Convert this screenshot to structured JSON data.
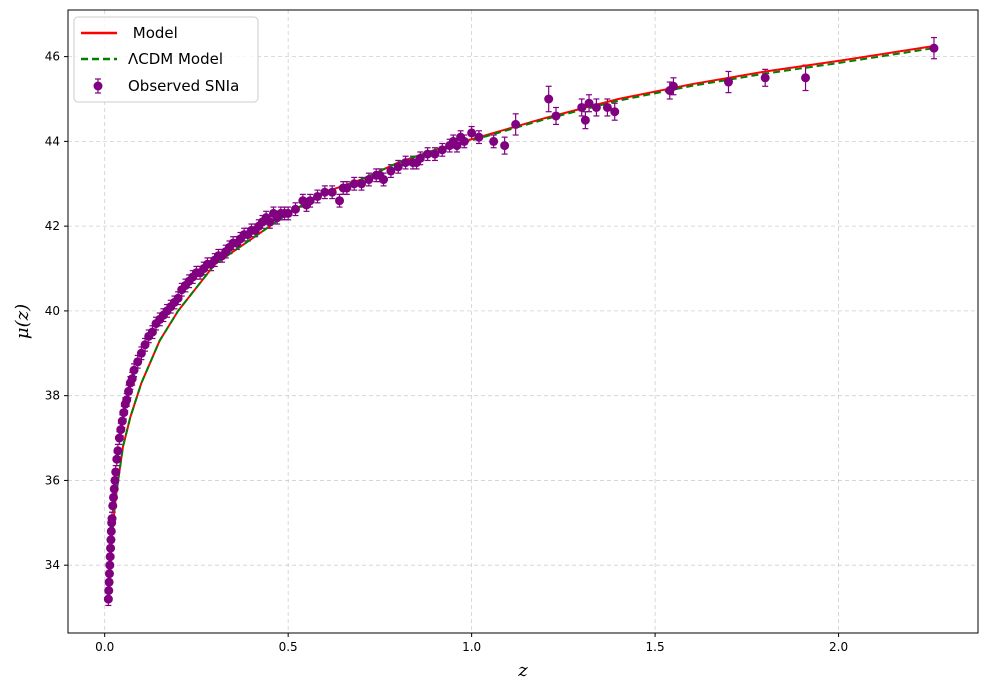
{
  "chart_data": {
    "type": "scatter",
    "title": "",
    "xlabel": "z",
    "ylabel": "μ(z)",
    "xlim": [
      -0.1,
      2.38
    ],
    "ylim": [
      32.4,
      47.1
    ],
    "x_ticks": [
      0.0,
      0.5,
      1.0,
      1.5,
      2.0
    ],
    "x_tick_labels": [
      "0.0",
      "0.5",
      "1.0",
      "1.5",
      "2.0"
    ],
    "y_ticks": [
      34,
      36,
      38,
      40,
      42,
      44,
      46
    ],
    "y_tick_labels": [
      "34",
      "36",
      "38",
      "40",
      "42",
      "44",
      "46"
    ],
    "grid": true,
    "legend_position": "top-left",
    "legend": [
      {
        "label": " Model",
        "style": "solid-line",
        "color": "#ff0000"
      },
      {
        "label": "ΛCDM Model",
        "style": "dashed-line",
        "color": "#008000"
      },
      {
        "label": "Observed SNIa",
        "style": "marker-errorbar",
        "color": "#800080"
      }
    ],
    "series": [
      {
        "name": " Model",
        "kind": "line",
        "color": "#ff0000",
        "x": [
          0.01,
          0.02,
          0.03,
          0.05,
          0.07,
          0.1,
          0.15,
          0.2,
          0.3,
          0.4,
          0.5,
          0.6,
          0.7,
          0.8,
          0.9,
          1.0,
          1.2,
          1.4,
          1.6,
          1.8,
          2.0,
          2.26
        ],
        "y": [
          33.2,
          34.7,
          35.6,
          36.8,
          37.5,
          38.3,
          39.3,
          40.0,
          41.1,
          41.7,
          42.3,
          42.8,
          43.1,
          43.5,
          43.8,
          44.05,
          44.55,
          45.0,
          45.35,
          45.65,
          45.9,
          46.25
        ]
      },
      {
        "name": "ΛCDM Model",
        "kind": "dashed-line",
        "color": "#008000",
        "x": [
          0.01,
          0.02,
          0.03,
          0.05,
          0.07,
          0.1,
          0.15,
          0.2,
          0.3,
          0.4,
          0.5,
          0.6,
          0.7,
          0.8,
          0.9,
          1.0,
          1.2,
          1.4,
          1.6,
          1.8,
          2.0,
          2.26
        ],
        "y": [
          33.2,
          34.7,
          35.6,
          36.8,
          37.5,
          38.3,
          39.3,
          40.0,
          41.1,
          41.7,
          42.3,
          42.8,
          43.1,
          43.5,
          43.8,
          44.02,
          44.52,
          44.96,
          45.31,
          45.6,
          45.85,
          46.2
        ]
      },
      {
        "name": "Observed SNIa",
        "kind": "scatter-errorbar",
        "color": "#800080",
        "x": [
          0.01,
          0.011,
          0.012,
          0.013,
          0.014,
          0.015,
          0.016,
          0.017,
          0.018,
          0.019,
          0.02,
          0.022,
          0.024,
          0.026,
          0.028,
          0.03,
          0.033,
          0.036,
          0.04,
          0.044,
          0.048,
          0.052,
          0.056,
          0.06,
          0.065,
          0.07,
          0.075,
          0.08,
          0.09,
          0.1,
          0.11,
          0.12,
          0.13,
          0.14,
          0.15,
          0.16,
          0.17,
          0.18,
          0.19,
          0.2,
          0.21,
          0.22,
          0.23,
          0.24,
          0.25,
          0.26,
          0.27,
          0.28,
          0.29,
          0.3,
          0.31,
          0.32,
          0.33,
          0.34,
          0.35,
          0.36,
          0.37,
          0.38,
          0.39,
          0.4,
          0.41,
          0.42,
          0.43,
          0.44,
          0.45,
          0.46,
          0.47,
          0.48,
          0.49,
          0.5,
          0.52,
          0.54,
          0.55,
          0.56,
          0.58,
          0.6,
          0.62,
          0.64,
          0.65,
          0.66,
          0.68,
          0.7,
          0.72,
          0.74,
          0.75,
          0.76,
          0.78,
          0.8,
          0.82,
          0.84,
          0.85,
          0.86,
          0.88,
          0.9,
          0.92,
          0.94,
          0.95,
          0.96,
          0.97,
          0.98,
          1.0,
          1.02,
          1.06,
          1.09,
          1.12,
          1.21,
          1.23,
          1.3,
          1.31,
          1.32,
          1.34,
          1.37,
          1.39,
          1.54,
          1.55,
          1.7,
          1.8,
          1.91,
          2.26
        ],
        "y": [
          33.2,
          33.4,
          33.6,
          33.8,
          34.0,
          34.2,
          34.4,
          34.6,
          34.8,
          35.0,
          35.1,
          35.4,
          35.6,
          35.8,
          36.0,
          36.2,
          36.5,
          36.7,
          37.0,
          37.2,
          37.4,
          37.6,
          37.8,
          37.9,
          38.1,
          38.3,
          38.4,
          38.6,
          38.8,
          39.0,
          39.2,
          39.4,
          39.5,
          39.7,
          39.8,
          39.9,
          40.0,
          40.1,
          40.2,
          40.3,
          40.5,
          40.6,
          40.7,
          40.8,
          40.9,
          40.9,
          41.0,
          41.1,
          41.1,
          41.2,
          41.3,
          41.3,
          41.4,
          41.5,
          41.6,
          41.6,
          41.7,
          41.8,
          41.8,
          41.9,
          41.9,
          42.0,
          42.1,
          42.2,
          42.1,
          42.3,
          42.2,
          42.3,
          42.3,
          42.3,
          42.4,
          42.6,
          42.5,
          42.6,
          42.7,
          42.8,
          42.8,
          42.6,
          42.9,
          42.9,
          43.0,
          43.0,
          43.1,
          43.2,
          43.2,
          43.1,
          43.3,
          43.4,
          43.5,
          43.5,
          43.5,
          43.6,
          43.7,
          43.7,
          43.8,
          43.9,
          44.0,
          43.9,
          44.1,
          44.0,
          44.2,
          44.1,
          44.0,
          43.9,
          44.4,
          45.0,
          44.6,
          44.8,
          44.5,
          44.9,
          44.8,
          44.8,
          44.7,
          45.2,
          45.3,
          45.4,
          45.5,
          45.5,
          46.2
        ],
        "yerr": [
          0.15,
          0.15,
          0.15,
          0.15,
          0.15,
          0.15,
          0.15,
          0.15,
          0.15,
          0.15,
          0.15,
          0.15,
          0.15,
          0.15,
          0.15,
          0.15,
          0.15,
          0.15,
          0.15,
          0.15,
          0.15,
          0.15,
          0.15,
          0.15,
          0.15,
          0.15,
          0.15,
          0.15,
          0.15,
          0.15,
          0.15,
          0.15,
          0.15,
          0.15,
          0.15,
          0.15,
          0.15,
          0.15,
          0.15,
          0.15,
          0.15,
          0.15,
          0.15,
          0.15,
          0.15,
          0.15,
          0.15,
          0.15,
          0.15,
          0.15,
          0.15,
          0.15,
          0.15,
          0.15,
          0.15,
          0.15,
          0.15,
          0.15,
          0.15,
          0.15,
          0.15,
          0.15,
          0.15,
          0.15,
          0.15,
          0.15,
          0.15,
          0.15,
          0.15,
          0.15,
          0.15,
          0.15,
          0.15,
          0.15,
          0.15,
          0.15,
          0.15,
          0.15,
          0.15,
          0.15,
          0.15,
          0.15,
          0.15,
          0.15,
          0.15,
          0.15,
          0.15,
          0.15,
          0.15,
          0.15,
          0.15,
          0.15,
          0.15,
          0.15,
          0.15,
          0.15,
          0.15,
          0.15,
          0.15,
          0.15,
          0.15,
          0.15,
          0.15,
          0.2,
          0.25,
          0.3,
          0.2,
          0.2,
          0.2,
          0.2,
          0.2,
          0.2,
          0.2,
          0.2,
          0.2,
          0.25,
          0.2,
          0.3,
          0.25
        ]
      }
    ]
  }
}
